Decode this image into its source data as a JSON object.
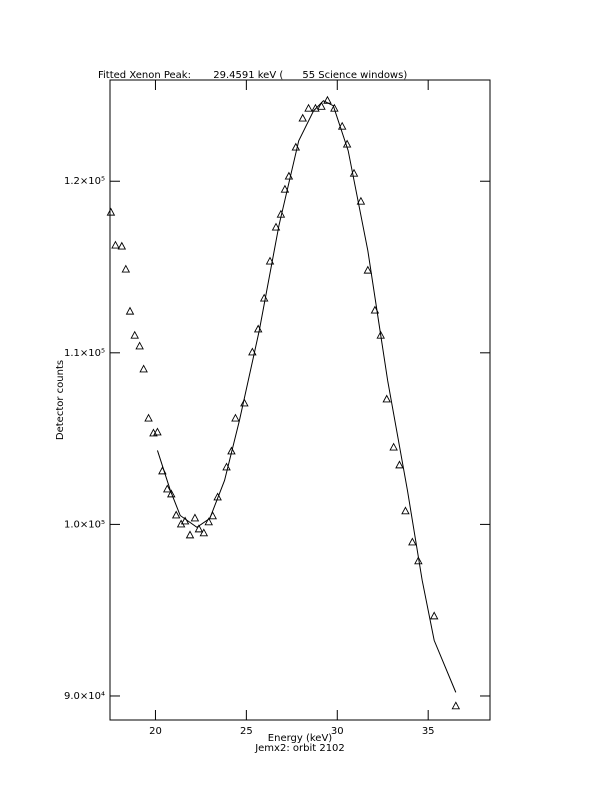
{
  "chart_data": {
    "type": "scatter",
    "title": "Fitted Xenon Peak:       29.4591 keV (      55 Science windows)",
    "x_label": "Energy (keV)",
    "subtitle": "Jemx2: orbit 2102",
    "y_label": "Detector counts",
    "xlim": [
      17.5,
      38.4
    ],
    "ylim": [
      88600,
      125900
    ],
    "xticks": [
      20,
      25,
      30,
      35
    ],
    "yticks": [
      {
        "value": 90000,
        "label": "9.0×10⁴"
      },
      {
        "value": 100000,
        "label": "1.0×10⁵"
      },
      {
        "value": 110000,
        "label": "1.1×10⁵"
      },
      {
        "value": 120000,
        "label": "1.2×10⁵"
      }
    ],
    "series": [
      {
        "mode": "markers",
        "marker": "triangle",
        "color": "#000000",
        "x": [
          17.55,
          17.8,
          18.15,
          18.37,
          18.6,
          18.86,
          19.13,
          19.35,
          19.62,
          19.89,
          20.11,
          20.38,
          20.65,
          20.87,
          21.14,
          21.41,
          21.63,
          21.9,
          22.17,
          22.39,
          22.66,
          22.93,
          23.15,
          23.42,
          23.91,
          24.18,
          24.4,
          24.89,
          25.33,
          25.65,
          25.98,
          26.3,
          26.63,
          26.9,
          27.12,
          27.34,
          27.72,
          28.1,
          28.42,
          28.8,
          29.13,
          29.46,
          29.84,
          30.27,
          30.54,
          30.92,
          31.3,
          31.68,
          32.07,
          32.39,
          32.72,
          33.1,
          33.42,
          33.75,
          34.13,
          34.46,
          35.33,
          36.52
        ],
        "values": [
          118170,
          116250,
          116190,
          114850,
          112400,
          111000,
          110370,
          109030,
          106170,
          105300,
          105360,
          103090,
          102040,
          101750,
          100520,
          100000,
          100170,
          99360,
          100350,
          99710,
          99480,
          100120,
          100470,
          101570,
          103320,
          104250,
          106170,
          107050,
          110020,
          111360,
          113160,
          115320,
          117300,
          118050,
          119510,
          120270,
          121960,
          123650,
          124230,
          124230,
          124340,
          124690,
          124230,
          123180,
          122140,
          120440,
          118810,
          114790,
          112460,
          111000,
          107280,
          104480,
          103440,
          100760,
          98950,
          97850,
          94640,
          89400
        ]
      },
      {
        "mode": "line",
        "color": "#000000",
        "x": [
          20.11,
          20.82,
          21.36,
          22.28,
          22.99,
          23.8,
          24.62,
          25.71,
          26.79,
          27.88,
          28.7,
          29.24,
          29.78,
          30.6,
          31.68,
          32.77,
          33.86,
          34.67,
          35.33,
          36.52
        ],
        "values": [
          104310,
          101980,
          100520,
          99830,
          100350,
          102560,
          106060,
          111300,
          117410,
          122360,
          124110,
          124690,
          124400,
          121780,
          115960,
          108390,
          101980,
          96740,
          93240,
          90210
        ]
      }
    ]
  }
}
